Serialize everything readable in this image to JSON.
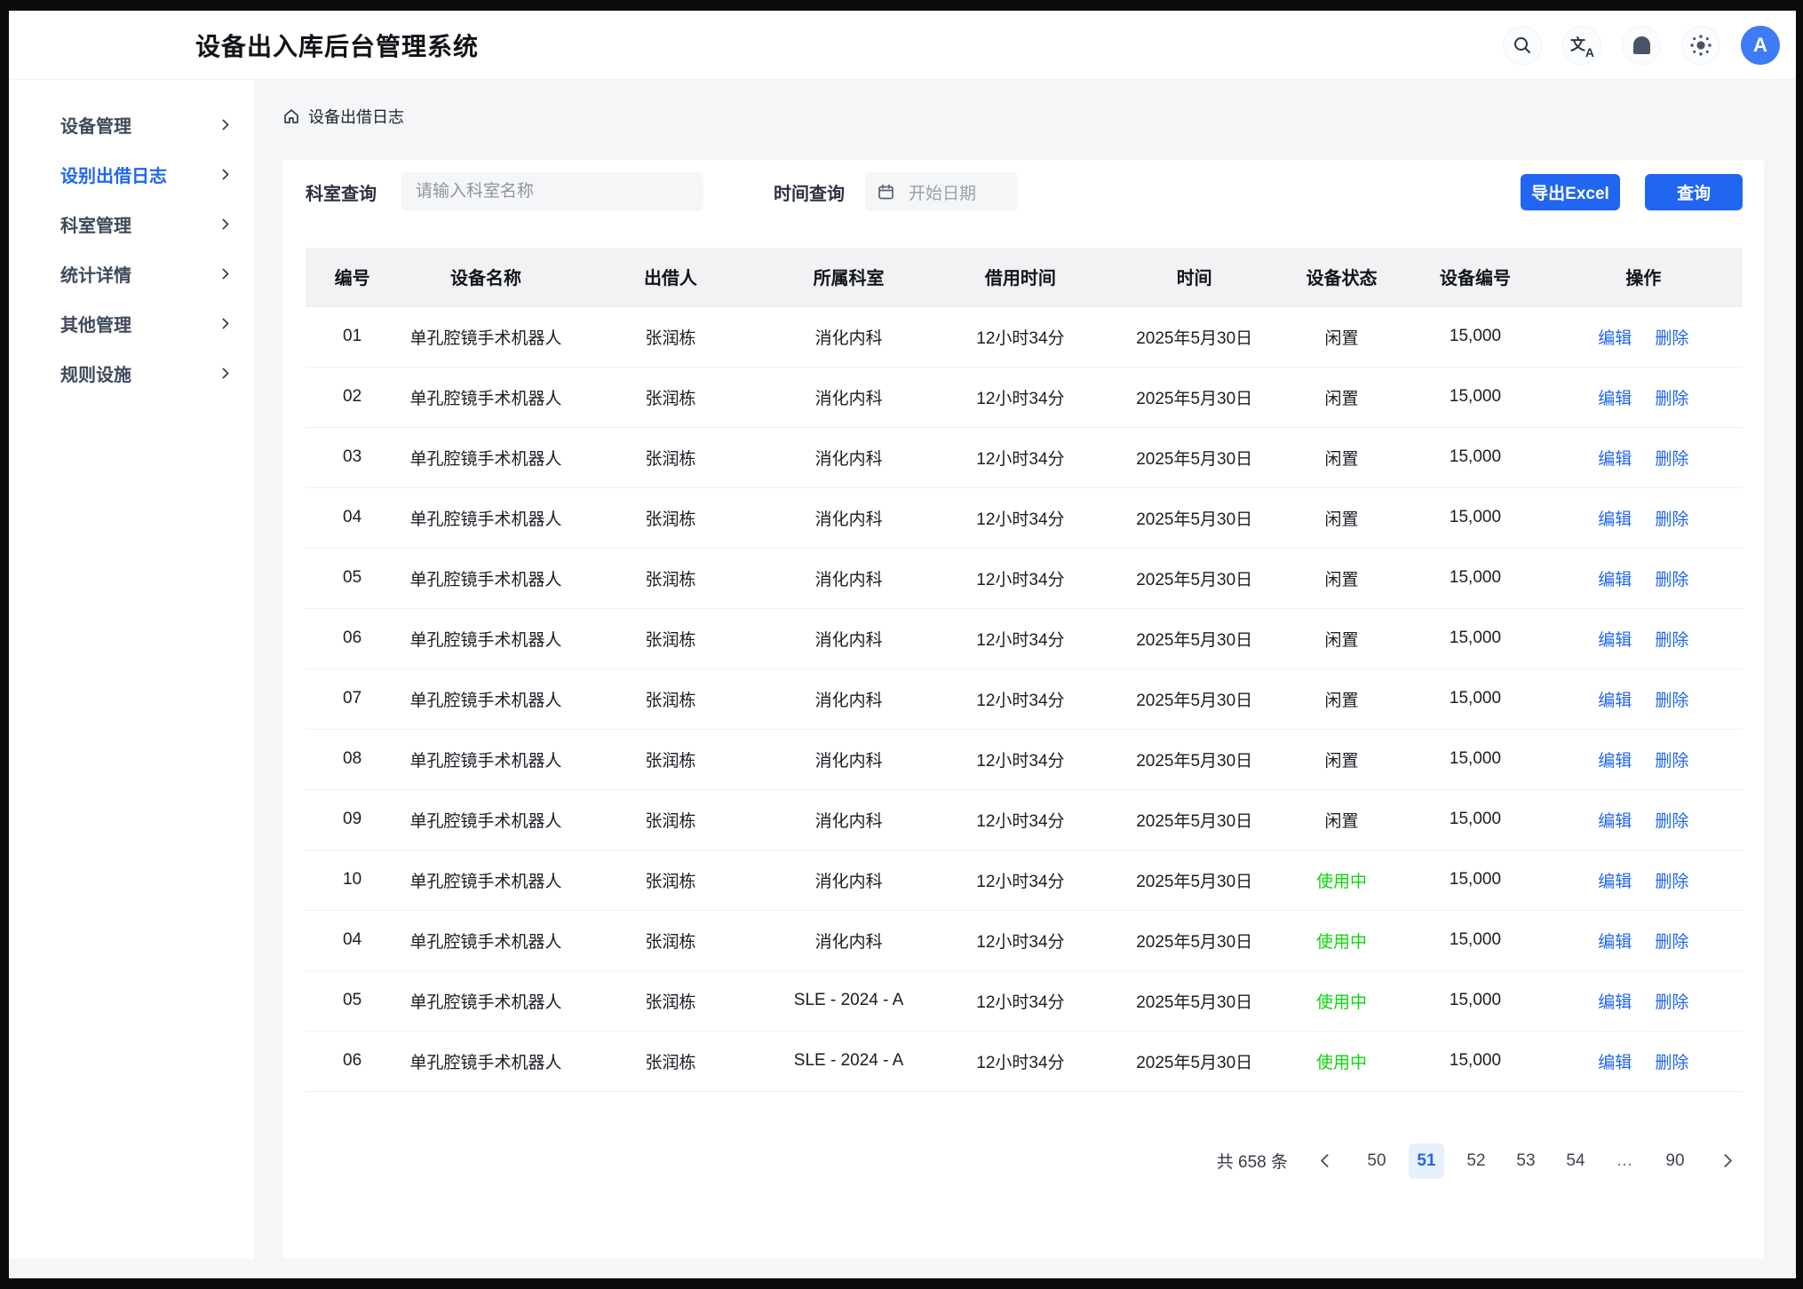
{
  "app": {
    "title": "设备出入库后台管理系统"
  },
  "header": {
    "avatar_letter": "A",
    "icons": [
      "search-icon",
      "translate-icon",
      "notification-bell-icon",
      "brightness-icon"
    ]
  },
  "sidebar": {
    "items": [
      {
        "label": "设备管理",
        "active": false
      },
      {
        "label": "设别出借日志",
        "active": true
      },
      {
        "label": "科室管理",
        "active": false
      },
      {
        "label": "统计详情",
        "active": false
      },
      {
        "label": "其他管理",
        "active": false
      },
      {
        "label": "规则设施",
        "active": false
      }
    ]
  },
  "breadcrumb": {
    "label": "设备出借日志"
  },
  "filters": {
    "dept_label": "科室查询",
    "dept_placeholder": "请输入科室名称",
    "time_label": "时间查询",
    "date_placeholder": "开始日期",
    "export_label": "导出Excel",
    "search_label": "查询"
  },
  "table": {
    "columns": [
      "编号",
      "设备名称",
      "出借人",
      "所属科室",
      "借用时间",
      "时间",
      "设备状态",
      "设备编号",
      "操作"
    ],
    "col_widths": [
      "6.5%",
      "12.1%",
      "13.6%",
      "11.2%",
      "12.7%",
      "11.5%",
      "9.0%",
      "9.6%",
      "13.8%"
    ],
    "edit_label": "编辑",
    "delete_label": "删除",
    "rows": [
      {
        "id": "01",
        "device": "单孔腔镜手术机器人",
        "lender": "张润栋",
        "dept": "消化内科",
        "duration": "12小时34分",
        "date": "2025年5月30日",
        "status": "闲置",
        "status_type": "idle",
        "code": "15,000"
      },
      {
        "id": "02",
        "device": "单孔腔镜手术机器人",
        "lender": "张润栋",
        "dept": "消化内科",
        "duration": "12小时34分",
        "date": "2025年5月30日",
        "status": "闲置",
        "status_type": "idle",
        "code": "15,000"
      },
      {
        "id": "03",
        "device": "单孔腔镜手术机器人",
        "lender": "张润栋",
        "dept": "消化内科",
        "duration": "12小时34分",
        "date": "2025年5月30日",
        "status": "闲置",
        "status_type": "idle",
        "code": "15,000"
      },
      {
        "id": "04",
        "device": "单孔腔镜手术机器人",
        "lender": "张润栋",
        "dept": "消化内科",
        "duration": "12小时34分",
        "date": "2025年5月30日",
        "status": "闲置",
        "status_type": "idle",
        "code": "15,000"
      },
      {
        "id": "05",
        "device": "单孔腔镜手术机器人",
        "lender": "张润栋",
        "dept": "消化内科",
        "duration": "12小时34分",
        "date": "2025年5月30日",
        "status": "闲置",
        "status_type": "idle",
        "code": "15,000"
      },
      {
        "id": "06",
        "device": "单孔腔镜手术机器人",
        "lender": "张润栋",
        "dept": "消化内科",
        "duration": "12小时34分",
        "date": "2025年5月30日",
        "status": "闲置",
        "status_type": "idle",
        "code": "15,000"
      },
      {
        "id": "07",
        "device": "单孔腔镜手术机器人",
        "lender": "张润栋",
        "dept": "消化内科",
        "duration": "12小时34分",
        "date": "2025年5月30日",
        "status": "闲置",
        "status_type": "idle",
        "code": "15,000"
      },
      {
        "id": "08",
        "device": "单孔腔镜手术机器人",
        "lender": "张润栋",
        "dept": "消化内科",
        "duration": "12小时34分",
        "date": "2025年5月30日",
        "status": "闲置",
        "status_type": "idle",
        "code": "15,000"
      },
      {
        "id": "09",
        "device": "单孔腔镜手术机器人",
        "lender": "张润栋",
        "dept": "消化内科",
        "duration": "12小时34分",
        "date": "2025年5月30日",
        "status": "闲置",
        "status_type": "idle",
        "code": "15,000"
      },
      {
        "id": "10",
        "device": "单孔腔镜手术机器人",
        "lender": "张润栋",
        "dept": "消化内科",
        "duration": "12小时34分",
        "date": "2025年5月30日",
        "status": "使用中",
        "status_type": "active",
        "code": "15,000"
      },
      {
        "id": "04",
        "device": "单孔腔镜手术机器人",
        "lender": "张润栋",
        "dept": "消化内科",
        "duration": "12小时34分",
        "date": "2025年5月30日",
        "status": "使用中",
        "status_type": "active",
        "code": "15,000"
      },
      {
        "id": "05",
        "device": "单孔腔镜手术机器人",
        "lender": "张润栋",
        "dept": "SLE - 2024 - A",
        "duration": "12小时34分",
        "date": "2025年5月30日",
        "status": "使用中",
        "status_type": "active",
        "code": "15,000"
      },
      {
        "id": "06",
        "device": "单孔腔镜手术机器人",
        "lender": "张润栋",
        "dept": "SLE - 2024 - A",
        "duration": "12小时34分",
        "date": "2025年5月30日",
        "status": "使用中",
        "status_type": "active",
        "code": "15,000"
      }
    ]
  },
  "pagination": {
    "total": "共 658 条",
    "pages": [
      "50",
      "51",
      "52",
      "53",
      "54",
      "…",
      "90"
    ],
    "active": "51"
  },
  "colors": {
    "primary": "#2166f0",
    "status_active_green": "#0bd60b",
    "avatar_blue": "#3e7bf7"
  }
}
